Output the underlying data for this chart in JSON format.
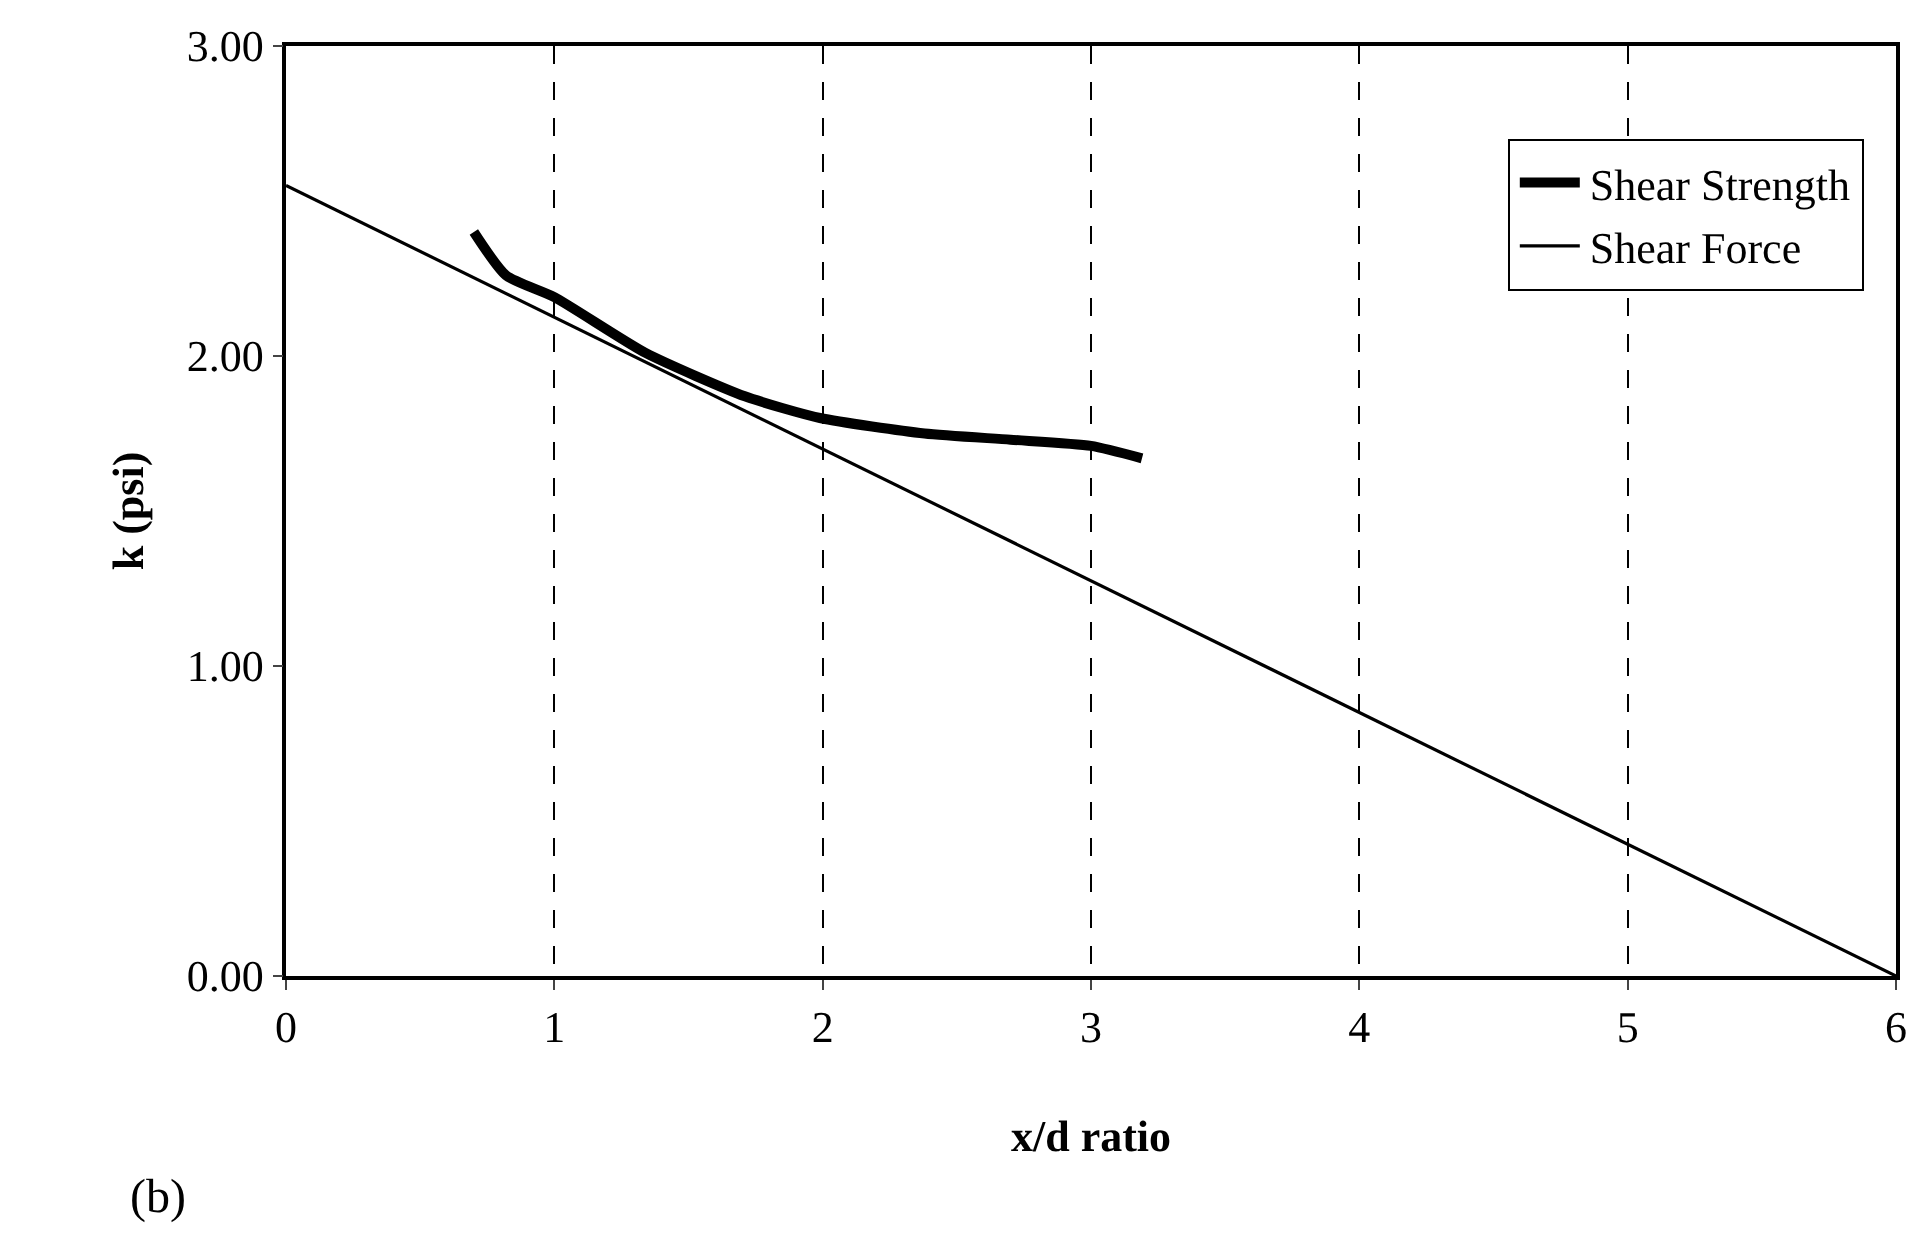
{
  "chart_data": {
    "type": "line",
    "xlabel": "x/d ratio",
    "ylabel": "k (psi)",
    "xlim": [
      0,
      6
    ],
    "xticks": [
      0,
      1,
      2,
      3,
      4,
      5,
      6
    ],
    "ylim": [
      0,
      3
    ],
    "yticks": [
      {
        "value": 0,
        "label": "0.00"
      },
      {
        "value": 1,
        "label": "1.00"
      },
      {
        "value": 2,
        "label": "2.00"
      },
      {
        "value": 3,
        "label": "3.00"
      }
    ],
    "grid": "x",
    "legend": "top right",
    "marker": "none",
    "line_style": "solid",
    "annotations": [
      "(b)"
    ],
    "series": [
      {
        "name": "Shear Strength",
        "color": "#000000",
        "x": [
          0.7,
          0.82,
          1.0,
          1.34,
          1.71,
          1.99,
          2.38,
          2.7,
          3.0,
          3.19
        ],
        "values": [
          2.4,
          2.26,
          2.19,
          2.01,
          1.87,
          1.8,
          1.75,
          1.73,
          1.71,
          1.67
        ]
      },
      {
        "name": "Shear Force",
        "color": "#000000",
        "x": [
          0,
          6
        ],
        "values": [
          2.55,
          0
        ]
      }
    ]
  }
}
